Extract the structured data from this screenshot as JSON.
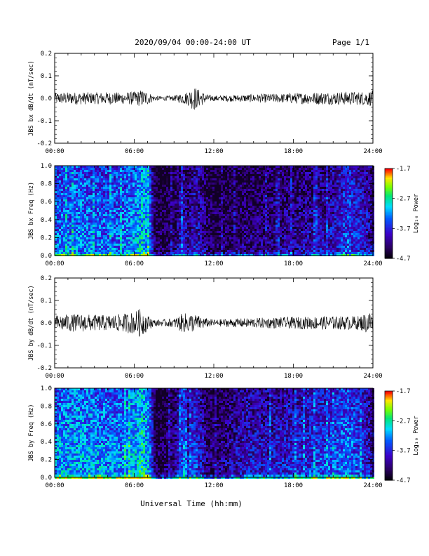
{
  "header": {
    "title": "2020/09/04  00:00-24:00 UT",
    "page": "Page 1/1"
  },
  "xlabel": "Universal Time (hh:mm)",
  "chart_data": [
    {
      "type": "line",
      "ylabel": "JBS bx dB/dt (nT/sec)",
      "xlim": [
        0,
        24
      ],
      "ylim": [
        -0.2,
        0.2
      ],
      "xticks": [
        "00:00",
        "06:00",
        "12:00",
        "18:00",
        "24:00"
      ],
      "yticks": [
        "0.2",
        "0.1",
        "0.0",
        "-0.1",
        "-0.2"
      ],
      "envelope": {
        "x_hours": [
          0,
          1,
          2,
          3,
          4,
          5,
          6,
          6.5,
          7,
          7.5,
          8,
          9,
          9.5,
          10,
          10.5,
          11,
          11.5,
          12,
          13,
          14,
          15,
          16,
          17,
          18,
          19,
          20,
          21,
          22,
          23,
          24
        ],
        "amplitude": [
          0.025,
          0.027,
          0.028,
          0.026,
          0.028,
          0.026,
          0.03,
          0.038,
          0.03,
          0.012,
          0.01,
          0.012,
          0.022,
          0.03,
          0.055,
          0.035,
          0.018,
          0.012,
          0.014,
          0.016,
          0.018,
          0.02,
          0.02,
          0.024,
          0.026,
          0.028,
          0.028,
          0.03,
          0.03,
          0.035
        ]
      }
    },
    {
      "type": "heatmap",
      "ylabel": "JBS bx Freq (Hz)",
      "xlim": [
        0,
        24
      ],
      "ylim": [
        0,
        1.0
      ],
      "xticks": [
        "00:00",
        "06:00",
        "12:00",
        "18:00",
        "24:00"
      ],
      "yticks": [
        "1.0",
        "0.8",
        "0.6",
        "0.4",
        "0.2",
        "0.0"
      ],
      "colorbar": {
        "label": "Log₁₀ Power",
        "range": [
          -4.7,
          -1.7
        ],
        "ticks": [
          "-1.7",
          "-2.7",
          "-3.7",
          "-4.7"
        ]
      },
      "activity": {
        "x_hours": [
          0,
          1,
          2,
          3,
          4,
          5,
          6,
          6.5,
          7,
          7.5,
          8,
          9,
          9.5,
          10,
          10.5,
          11,
          11.5,
          12,
          13,
          14,
          15,
          16,
          17,
          18,
          19,
          20,
          21,
          22,
          23,
          24
        ],
        "level": [
          0.62,
          0.64,
          0.66,
          0.6,
          0.62,
          0.6,
          0.7,
          0.8,
          0.72,
          0.18,
          0.15,
          0.22,
          0.4,
          0.3,
          0.42,
          0.35,
          0.2,
          0.18,
          0.2,
          0.22,
          0.25,
          0.26,
          0.28,
          0.3,
          0.32,
          0.36,
          0.4,
          0.55,
          0.45,
          0.3
        ]
      }
    },
    {
      "type": "line",
      "ylabel": "JBS by dB/dt (nT/sec)",
      "xlim": [
        0,
        24
      ],
      "ylim": [
        -0.2,
        0.2
      ],
      "xticks": [
        "00:00",
        "06:00",
        "12:00",
        "18:00",
        "24:00"
      ],
      "yticks": [
        "0.2",
        "0.1",
        "0.0",
        "-0.1",
        "-0.2"
      ],
      "envelope": {
        "x_hours": [
          0,
          1,
          2,
          3,
          4,
          5,
          6,
          6.5,
          7,
          7.5,
          8,
          9,
          9.5,
          10,
          10.5,
          11,
          11.5,
          12,
          13,
          14,
          15,
          16,
          17,
          18,
          19,
          20,
          21,
          22,
          23,
          24
        ],
        "amplitude": [
          0.035,
          0.038,
          0.04,
          0.036,
          0.035,
          0.04,
          0.05,
          0.065,
          0.035,
          0.015,
          0.014,
          0.02,
          0.04,
          0.045,
          0.04,
          0.03,
          0.02,
          0.015,
          0.018,
          0.02,
          0.022,
          0.024,
          0.025,
          0.026,
          0.028,
          0.03,
          0.03,
          0.03,
          0.032,
          0.06
        ]
      }
    },
    {
      "type": "heatmap",
      "ylabel": "JBS by Freq (Hz)",
      "xlim": [
        0,
        24
      ],
      "ylim": [
        0,
        1.0
      ],
      "xticks": [
        "00:00",
        "06:00",
        "12:00",
        "18:00",
        "24:00"
      ],
      "yticks": [
        "1.0",
        "0.8",
        "0.6",
        "0.4",
        "0.2",
        "0.0"
      ],
      "colorbar": {
        "label": "Log₁₀ Power",
        "range": [
          -4.7,
          -1.7
        ],
        "ticks": [
          "-1.7",
          "-2.7",
          "-3.7",
          "-4.7"
        ]
      },
      "activity": {
        "x_hours": [
          0,
          1,
          2,
          3,
          4,
          5,
          6,
          6.5,
          7,
          7.5,
          8,
          9,
          9.5,
          10,
          10.5,
          11,
          11.5,
          12,
          13,
          14,
          15,
          16,
          17,
          18,
          19,
          20,
          21,
          22,
          23,
          24
        ],
        "level": [
          0.7,
          0.72,
          0.74,
          0.7,
          0.68,
          0.66,
          0.78,
          0.85,
          0.75,
          0.2,
          0.15,
          0.3,
          0.55,
          0.4,
          0.55,
          0.4,
          0.25,
          0.22,
          0.3,
          0.38,
          0.42,
          0.4,
          0.42,
          0.45,
          0.48,
          0.52,
          0.55,
          0.65,
          0.5,
          0.35
        ]
      }
    }
  ]
}
